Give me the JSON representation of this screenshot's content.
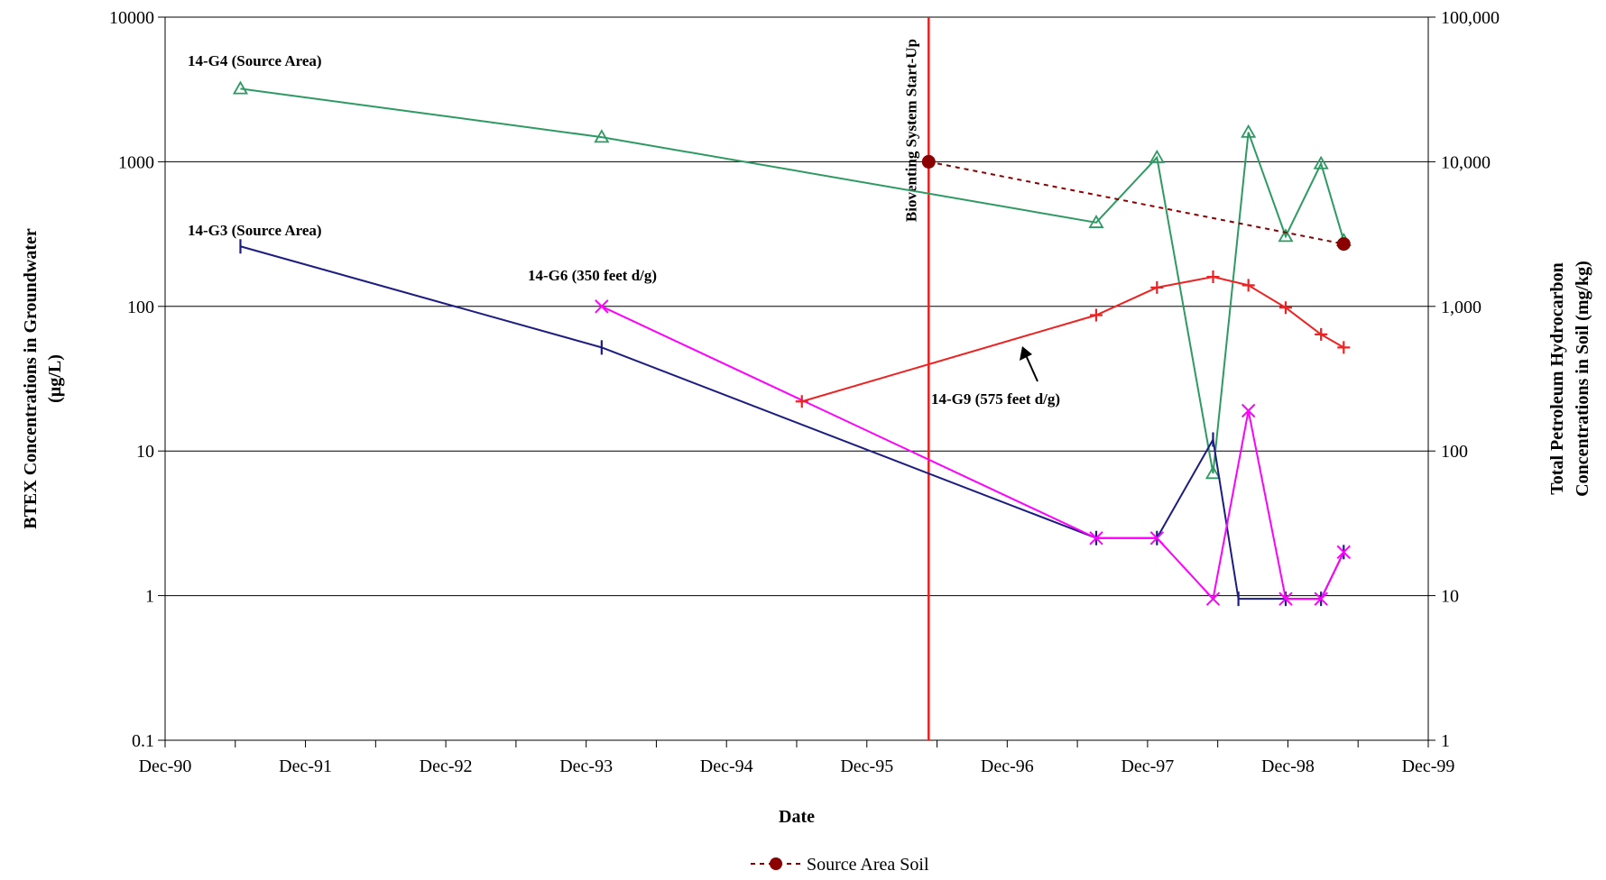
{
  "chart_data": {
    "type": "line",
    "xlabel": "Date",
    "ylabel_left": [
      "BTEX Concentrations in Groundwater",
      "(µg/L)"
    ],
    "ylabel_right": [
      "Total Petroleum Hydrocarbon",
      "Concentrations in Soil (mg/kg)"
    ],
    "x_ticks": [
      "Dec-90",
      "Dec-91",
      "Dec-92",
      "Dec-93",
      "Dec-94",
      "Dec-95",
      "Dec-96",
      "Dec-97",
      "Dec-98",
      "Dec-99"
    ],
    "xlim": [
      "1990-12-01",
      "1999-12-01"
    ],
    "left_scale": "log",
    "ylim_left": [
      0.1,
      10000
    ],
    "left_ticks": [
      "0.1",
      "1",
      "10",
      "100",
      "1000",
      "10000"
    ],
    "right_scale": "log",
    "ylim_right": [
      1,
      100000
    ],
    "right_ticks": [
      "1",
      "10",
      "100",
      "1,000",
      "10,000",
      "100,000"
    ],
    "grid": "horizontal",
    "event": {
      "label": "Bioventing System Start-Up",
      "date": "1996-05-10",
      "color": "#e8201f"
    },
    "series": [
      {
        "name": "14-G4 (Source Area)",
        "axis": "left",
        "color": "#2e9a63",
        "marker": "triangle",
        "points": [
          [
            "1991-06-15",
            3200
          ],
          [
            "1994-01-10",
            1480
          ],
          [
            "1997-07-20",
            380
          ],
          [
            "1997-12-25",
            1070
          ],
          [
            "1998-05-20",
            7
          ],
          [
            "1998-08-20",
            1600
          ],
          [
            "1998-11-25",
            305
          ],
          [
            "1999-02-25",
            970
          ],
          [
            "1999-04-25",
            285
          ]
        ]
      },
      {
        "name": "14-G3 (Source Area)",
        "axis": "left",
        "color": "#1c1c82",
        "marker": "vbar",
        "points": [
          [
            "1991-06-15",
            260
          ],
          [
            "1994-01-10",
            52
          ],
          [
            "1997-07-20",
            2.5
          ],
          [
            "1997-12-25",
            2.5
          ],
          [
            "1998-05-20",
            12
          ],
          [
            "1998-07-25",
            0.95
          ],
          [
            "1998-11-25",
            0.95
          ],
          [
            "1999-02-25",
            0.95
          ],
          [
            "1999-04-25",
            2
          ]
        ]
      },
      {
        "name": "14-G6 (350 feet d/g)",
        "axis": "left",
        "color": "#ff00ff",
        "marker": "x",
        "points": [
          [
            "1994-01-10",
            100
          ],
          [
            "1997-07-20",
            2.5
          ],
          [
            "1997-12-25",
            2.5
          ],
          [
            "1998-05-20",
            0.95
          ],
          [
            "1998-08-20",
            19
          ],
          [
            "1998-11-25",
            0.95
          ],
          [
            "1999-02-25",
            0.95
          ],
          [
            "1999-04-25",
            2
          ]
        ]
      },
      {
        "name": "14-G9 (575 feet d/g)",
        "axis": "left",
        "color": "#ee2222",
        "marker": "plus",
        "points": [
          [
            "1995-06-15",
            22
          ],
          [
            "1997-07-20",
            87
          ],
          [
            "1997-12-25",
            135
          ],
          [
            "1998-05-20",
            160
          ],
          [
            "1998-08-20",
            140
          ],
          [
            "1998-11-25",
            98
          ],
          [
            "1999-02-25",
            64
          ],
          [
            "1999-04-25",
            52
          ]
        ]
      },
      {
        "name": "Source Area Soil",
        "axis": "right",
        "color": "#8b0000",
        "marker": "dot",
        "dashed": true,
        "points": [
          [
            "1996-05-10",
            10000
          ],
          [
            "1999-04-25",
            2700
          ]
        ]
      }
    ],
    "legend": {
      "entries": [
        "Source Area Soil"
      ],
      "placement": "bottom-center"
    }
  }
}
